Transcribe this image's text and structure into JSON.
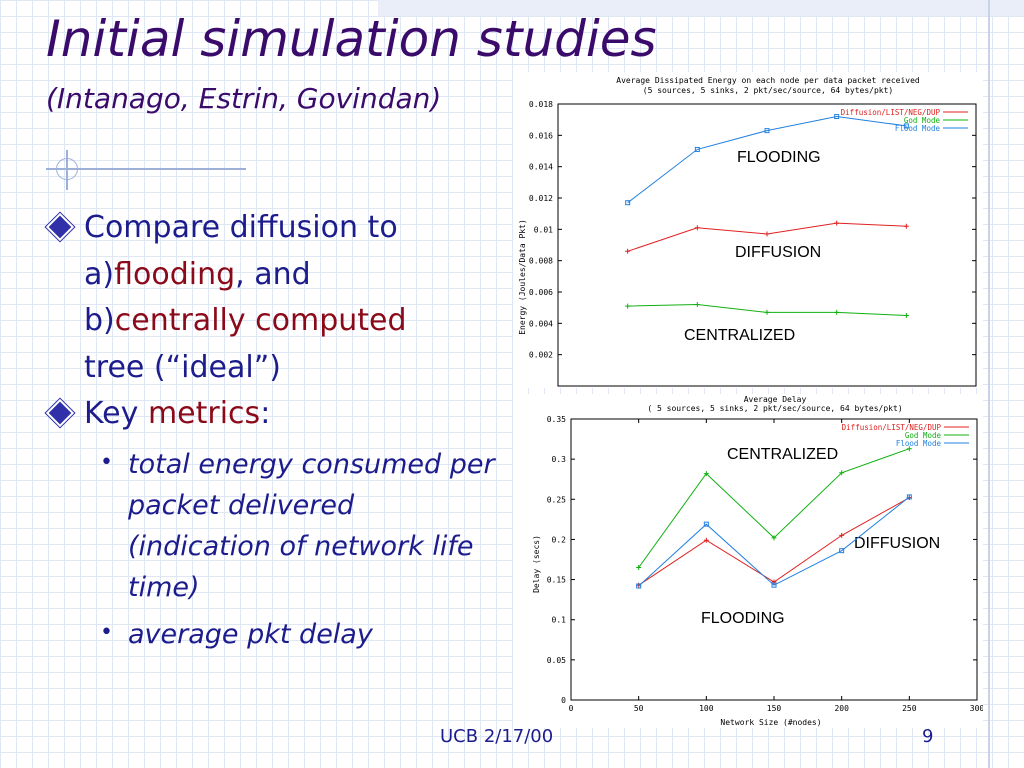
{
  "slide": {
    "title": "Initial simulation studies",
    "subtitle": "(Intanago, Estrin, Govindan)",
    "bullet1": {
      "l1": "Compare diffusion to",
      "l2_prefix": "a)",
      "l2_red": "flooding",
      "l2_suffix": ", and",
      "l3_prefix": "b)",
      "l3_red": "centrally computed",
      "l4": "tree (“ideal”)"
    },
    "bullet2": {
      "prefix": "Key ",
      "red": "metrics",
      "suffix": ":"
    },
    "sub_bullets": [
      "total energy consumed per packet delivered (indication of network life time)",
      "average pkt delay"
    ],
    "footer": "UCB 2/17/00",
    "page_number": "9",
    "colors": {
      "title": "#3a0b6b",
      "text": "#1c1c8c",
      "emphasis": "#8b0a1a"
    }
  },
  "chart_data": [
    {
      "type": "line",
      "title": "Average Dissipated Energy on each node per data packet received",
      "subtitle": "(5 sources, 5 sinks, 2 pkt/sec/source, 64 bytes/pkt)",
      "ylabel": "Energy (Joules/Data Pkt)",
      "xlabel": "",
      "ylim": [
        0,
        0.018
      ],
      "xlim": [
        0,
        300
      ],
      "yticks": [
        "0.002",
        "0.004",
        "0.006",
        "0.008",
        "0.01",
        "0.012",
        "0.014",
        "0.016",
        "0.018"
      ],
      "legend_position": "top-right",
      "series": [
        {
          "name": "Diffusion/LIST/NEG/DUP",
          "color": "#e02020",
          "marker": "plus",
          "x": [
            50,
            100,
            150,
            200,
            250
          ],
          "y": [
            0.0086,
            0.0101,
            0.0097,
            0.0104,
            0.0102
          ]
        },
        {
          "name": "God Mode",
          "color": "#10b010",
          "marker": "plus",
          "x": [
            50,
            100,
            150,
            200,
            250
          ],
          "y": [
            0.0051,
            0.0052,
            0.0047,
            0.0047,
            0.0045
          ]
        },
        {
          "name": "Flood Mode",
          "color": "#2080e0",
          "marker": "square",
          "x": [
            50,
            100,
            150,
            200,
            250
          ],
          "y": [
            0.0117,
            0.0151,
            0.0163,
            0.0172,
            0.0166
          ]
        }
      ],
      "annotations": [
        "FLOODING",
        "DIFFUSION",
        "CENTRALIZED"
      ]
    },
    {
      "type": "line",
      "title": "Average Delay",
      "subtitle": "( 5 sources, 5 sinks, 2 pkt/sec/source, 64 bytes/pkt)",
      "ylabel": "Delay (secs)",
      "xlabel": "Network Size (#nodes)",
      "ylim": [
        0,
        0.35
      ],
      "xlim": [
        0,
        300
      ],
      "yticks": [
        "0",
        "0.05",
        "0.1",
        "0.15",
        "0.2",
        "0.25",
        "0.3",
        "0.35"
      ],
      "xticks": [
        "0",
        "50",
        "100",
        "150",
        "200",
        "250",
        "300"
      ],
      "legend_position": "top-right",
      "series": [
        {
          "name": "Diffusion/LIST/NEG/DUP",
          "color": "#e02020",
          "marker": "plus",
          "x": [
            50,
            100,
            150,
            200,
            250
          ],
          "y": [
            0.143,
            0.199,
            0.147,
            0.205,
            0.252
          ]
        },
        {
          "name": "God Mode",
          "color": "#10b010",
          "marker": "plus",
          "x": [
            50,
            100,
            150,
            200,
            250
          ],
          "y": [
            0.165,
            0.282,
            0.202,
            0.283,
            0.313
          ]
        },
        {
          "name": "Flood Mode",
          "color": "#2080e0",
          "marker": "square",
          "x": [
            50,
            100,
            150,
            200,
            250
          ],
          "y": [
            0.142,
            0.219,
            0.143,
            0.186,
            0.253
          ]
        }
      ],
      "annotations": [
        "CENTRALIZED",
        "DIFFUSION",
        "FLOODING"
      ]
    }
  ]
}
